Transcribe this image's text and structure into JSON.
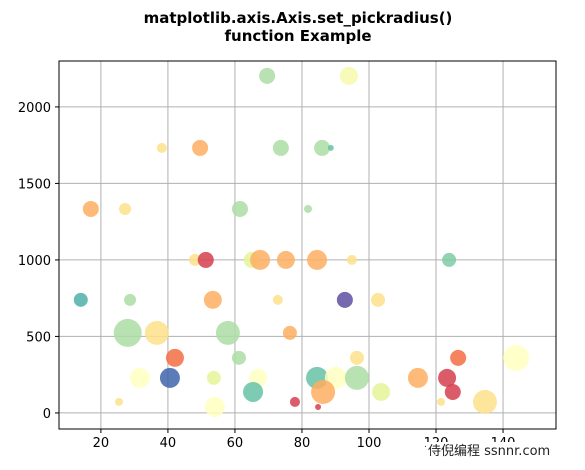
{
  "chart_data": {
    "type": "scatter",
    "title": [
      "matplotlib.axis.Axis.set_pickradius()",
      "function Example"
    ],
    "x": [
      69.6,
      94,
      38.2,
      49.6,
      73.7,
      86,
      88.6,
      17,
      27.2,
      61.5,
      81.8,
      48.1,
      51.3,
      65,
      67.5,
      75.2,
      84.5,
      94.9,
      123.9,
      14,
      28.7,
      53.4,
      72.8,
      92.8,
      102.7,
      28,
      36.7,
      57.9,
      76.4,
      42.1,
      61.2,
      126.6,
      143.9,
      96.4,
      31.6,
      40.6,
      53.7,
      66.9,
      84.5,
      90.1,
      96.4,
      114.6,
      123.3,
      65.4,
      86.3,
      103.6,
      125,
      77.9,
      54,
      134.6,
      25.4,
      84.8,
      121.5
    ],
    "y": [
      2203,
      2203,
      1732,
      1732,
      1732,
      1732,
      1732,
      1333,
      1333,
      1333,
      1333,
      1000,
      1000,
      1000,
      1000,
      1000,
      1000,
      1000,
      1000,
      739,
      739,
      739,
      739,
      739,
      739,
      523,
      523,
      523,
      523,
      360,
      360,
      360,
      360,
      360,
      229,
      229,
      229,
      229,
      229,
      229,
      229,
      229,
      229,
      137,
      137,
      137,
      137,
      72,
      39,
      72,
      72,
      39,
      72
    ],
    "sizes": [
      64,
      81,
      25,
      64,
      64,
      64,
      9,
      64,
      36,
      64,
      16,
      36,
      64,
      64,
      100,
      81,
      100,
      25,
      49,
      49,
      36,
      81,
      25,
      64,
      49,
      196,
      144,
      144,
      49,
      81,
      49,
      64,
      169,
      49,
      100,
      100,
      49,
      81,
      121,
      121,
      144,
      100,
      81,
      100,
      144,
      81,
      64,
      25,
      100,
      144,
      16,
      9,
      16
    ],
    "colors": [
      "#abdda4",
      "#f6f9ab",
      "#fee08b",
      "#fdae61",
      "#abdda4",
      "#abdda4",
      "#66c2a5",
      "#fdae61",
      "#fee08b",
      "#abdda4",
      "#abdda4",
      "#fee08b",
      "#d53e4f",
      "#e6f598",
      "#fdae61",
      "#fdae61",
      "#fdae61",
      "#fee08b",
      "#7fcba4",
      "#4fb0a8",
      "#abdda4",
      "#fdae61",
      "#fee08b",
      "#5e4fa2",
      "#fee08b",
      "#abdda4",
      "#fee08b",
      "#abdda4",
      "#fdae61",
      "#f46d43",
      "#abdda4",
      "#f46d43",
      "#ffffbf",
      "#fee08b",
      "#ffffbf",
      "#4065ab",
      "#e6f598",
      "#ffffbf",
      "#66c2a5",
      "#ffffbf",
      "#abdda4",
      "#fdae61",
      "#d53e4f",
      "#66c2a5",
      "#fdae61",
      "#e6f598",
      "#d53e4f",
      "#d53e4f",
      "#ffffbf",
      "#fee08b",
      "#fee08b",
      "#d53e4f",
      "#fee08b"
    ],
    "xlim": [
      7.5,
      155.8
    ],
    "ylim": [
      -105,
      2300
    ],
    "xticks": [
      20,
      40,
      60,
      80,
      100,
      120,
      140
    ],
    "yticks": [
      0,
      500,
      1000,
      1500,
      2000
    ],
    "grid": true,
    "watermark": "侍倪编程 ssnnr.com"
  }
}
